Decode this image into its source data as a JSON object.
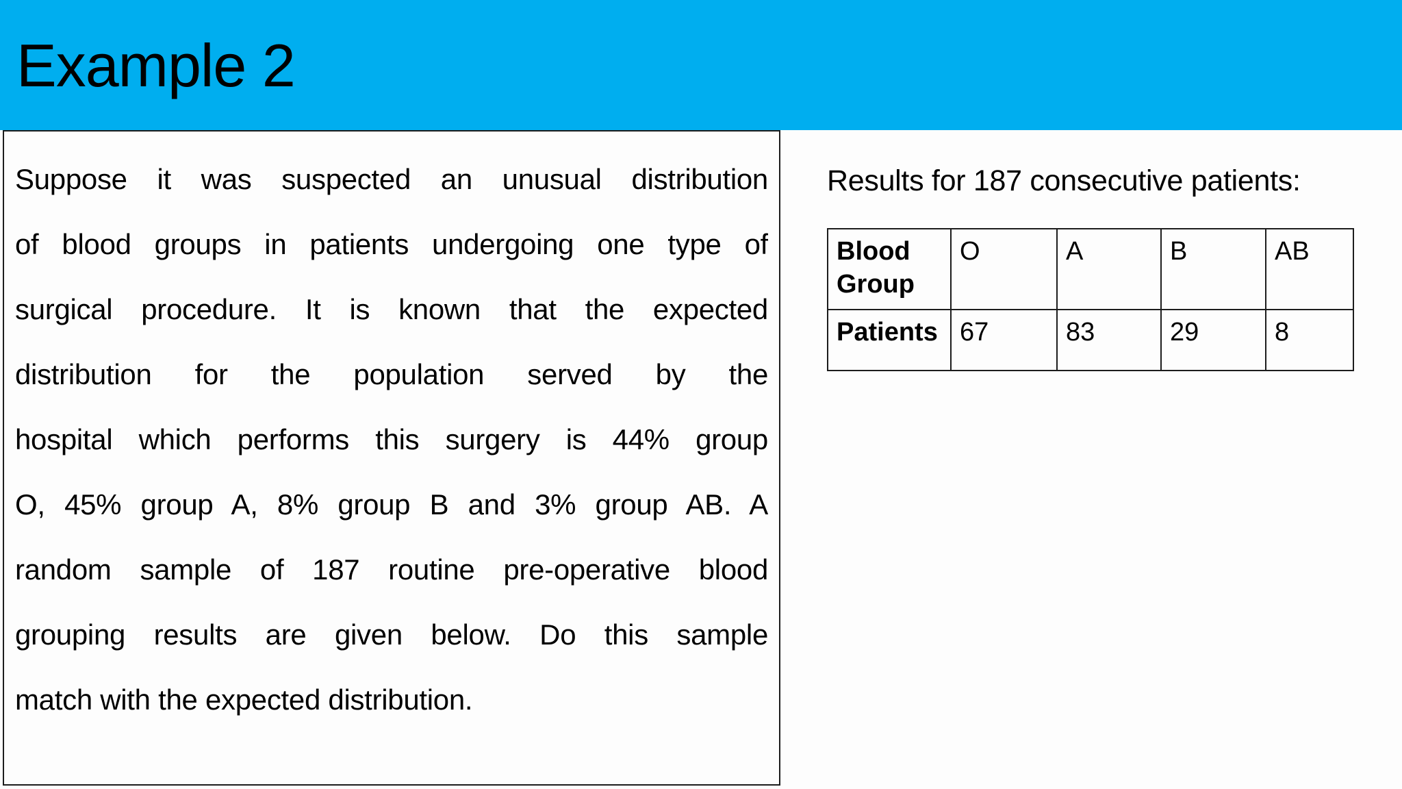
{
  "slide": {
    "title": "Example 2"
  },
  "problem": {
    "lines": [
      "Suppose it was suspected an unusual distribution",
      "of blood groups in patients undergoing one type of",
      "surgical procedure. It is known that the expected",
      "distribution for the population served by the",
      "hospital which performs this surgery is 44% group",
      "O, 45% group A, 8% group B and 3% group AB. A",
      "random sample of 187 routine pre-operative blood",
      "grouping results are given below. Do this sample",
      "match with the expected distribution."
    ]
  },
  "results": {
    "heading": "Results for 187 consecutive patients:",
    "table": {
      "rows": [
        [
          "Blood Group",
          "O",
          "A",
          "B",
          "AB"
        ],
        [
          "Patients",
          "67",
          "83",
          "29",
          "8"
        ]
      ]
    }
  },
  "colors": {
    "title_band": "#00AEEF",
    "text": "#000000",
    "background": "#FDFDFD",
    "border": "#1C1C1C"
  }
}
